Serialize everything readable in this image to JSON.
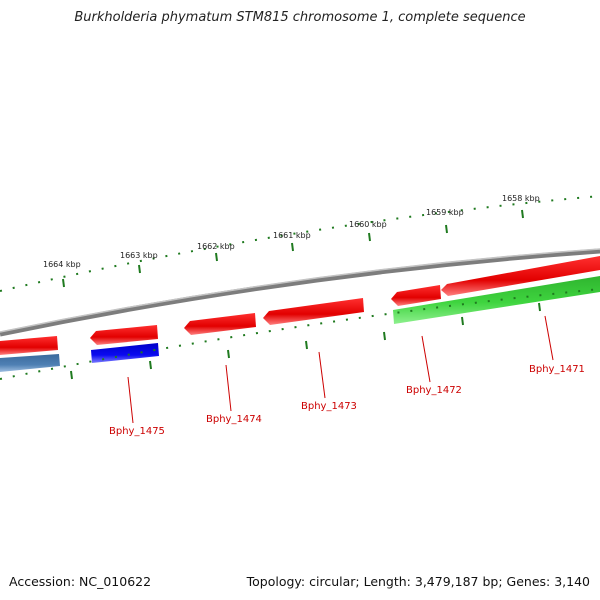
{
  "title": "Burkholderia phymatum STM815 chromosome 1, complete sequence",
  "footer": {
    "accession": "Accession: NC_010622",
    "summary": "Topology: circular; Length: 3,479,187 bp; Genes: 3,140"
  },
  "colors": {
    "backbone": "#8a8a8a",
    "forward_gene": "#e51010",
    "reverse_gene_green": "#33cc33",
    "reverse_gene_blue": "#1010e0",
    "reverse_gene_steel": "#4f7fb0",
    "tick": "#1f7a1f",
    "label_red": "#cc0000"
  },
  "kbp_labels": [
    "1658 kbp",
    "1659 kbp",
    "1660 kbp",
    "1661 kbp",
    "1662 kbp",
    "1663 kbp",
    "1664 kbp"
  ],
  "gene_labels": [
    "Bphy_1471",
    "Bphy_1472",
    "Bphy_1473",
    "Bphy_1474",
    "Bphy_1475"
  ]
}
